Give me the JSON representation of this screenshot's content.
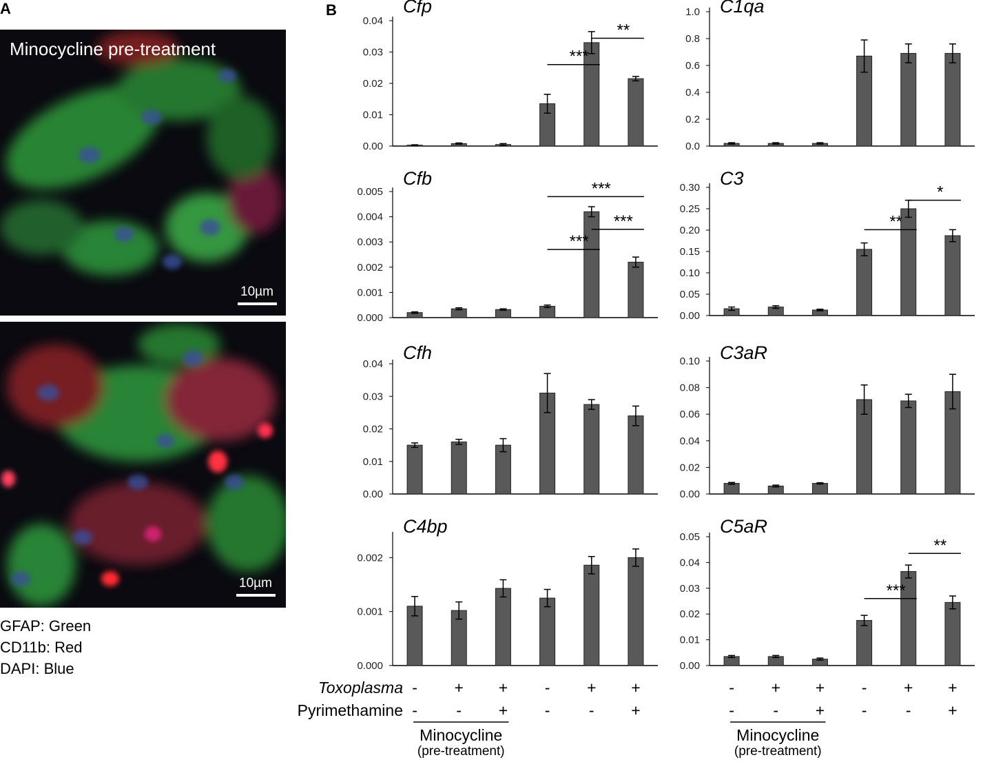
{
  "panel_a": {
    "label": "A",
    "images": [
      {
        "caption": "Minocycline pre-treatment",
        "scale_bar": "10µm"
      },
      {
        "scale_bar": "10µm"
      }
    ],
    "stain_legend": [
      "GFAP: Green",
      "CD11b: Red",
      "DAPI: Blue"
    ]
  },
  "panel_b": {
    "label": "B",
    "treatments": {
      "rows": [
        {
          "name": "Toxoplasma",
          "values": [
            "-",
            "+",
            "+",
            "-",
            "+",
            "+"
          ]
        },
        {
          "name": "Pyrimethamine",
          "values": [
            "-",
            "-",
            "+",
            "-",
            "-",
            "+"
          ]
        }
      ],
      "group": "Minocycline",
      "group_note": "(pre-treatment)"
    }
  },
  "chart_data": [
    {
      "type": "bar",
      "title": "Cfp",
      "categories": [
        null,
        null,
        null,
        null,
        null,
        null
      ],
      "color": "#595959",
      "values": [
        0.0003,
        0.0008,
        0.0005,
        0.0135,
        0.033,
        0.0215
      ],
      "errors": [
        0.0001,
        0.0002,
        0.0003,
        0.003,
        0.0035,
        0.0007
      ],
      "ylim": [
        0,
        0.04
      ],
      "yticks": [
        {
          "value": 0,
          "label": "0.00"
        },
        0.01,
        0.02,
        0.03,
        0.04
      ],
      "annotations": [
        "***",
        "**"
      ]
    },
    {
      "type": "bar",
      "title": "C1qa",
      "categories": [
        null,
        null,
        null,
        null,
        null,
        null
      ],
      "color": "#595959",
      "values": [
        0.02,
        0.02,
        0.02,
        0.67,
        0.69,
        0.69
      ],
      "errors": [
        0.005,
        0.005,
        0.005,
        0.12,
        0.07,
        0.07
      ],
      "ylim": [
        0,
        1
      ],
      "yticks": [
        {
          "value": 0,
          "label": "0.0"
        },
        0.2,
        0.4,
        0.6,
        0.8,
        {
          "value": 1,
          "label": "1.0"
        }
      ]
    },
    {
      "type": "bar",
      "title": "Cfb",
      "categories": [
        null,
        null,
        null,
        null,
        null,
        null
      ],
      "color": "#595959",
      "values": [
        0.0002,
        0.00035,
        0.00032,
        0.00045,
        0.0042,
        0.0022
      ],
      "errors": [
        3e-05,
        4e-05,
        3e-05,
        5e-05,
        0.0002,
        0.0002
      ],
      "ylim": [
        0,
        0.005
      ],
      "yticks": [
        {
          "value": 0,
          "label": "0.000"
        },
        0.001,
        0.002,
        0.003,
        0.004,
        0.005
      ],
      "annotations": [
        "***",
        "***",
        "***"
      ]
    },
    {
      "type": "bar",
      "title": "C3",
      "categories": [
        null,
        null,
        null,
        null,
        null,
        null
      ],
      "color": "#595959",
      "values": [
        0.016,
        0.02,
        0.013,
        0.155,
        0.25,
        0.187
      ],
      "errors": [
        0.004,
        0.003,
        0.002,
        0.015,
        0.02,
        0.014
      ],
      "ylim": [
        0,
        0.3
      ],
      "yticks": [
        {
          "value": 0,
          "label": "0.00"
        },
        0.05,
        {
          "value": 0.1,
          "label": "0.10"
        },
        0.15,
        {
          "value": 0.2,
          "label": "0.20"
        },
        0.25,
        {
          "value": 0.3,
          "label": "0.30"
        }
      ],
      "annotations": [
        "**",
        "*"
      ]
    },
    {
      "type": "bar",
      "title": "Cfh",
      "categories": [
        null,
        null,
        null,
        null,
        null,
        null
      ],
      "color": "#595959",
      "values": [
        0.015,
        0.016,
        0.015,
        0.031,
        0.0275,
        0.024
      ],
      "errors": [
        0.0007,
        0.0008,
        0.002,
        0.006,
        0.0015,
        0.003
      ],
      "ylim": [
        0,
        0.04
      ],
      "yticks": [
        {
          "value": 0,
          "label": "0.00"
        },
        0.01,
        0.02,
        0.03,
        0.04
      ]
    },
    {
      "type": "bar",
      "title": "C3aR",
      "categories": [
        null,
        null,
        null,
        null,
        null,
        null
      ],
      "color": "#595959",
      "values": [
        0.008,
        0.006,
        0.008,
        0.071,
        0.07,
        0.077
      ],
      "errors": [
        0.0007,
        0.0007,
        0.0005,
        0.011,
        0.005,
        0.013
      ],
      "ylim": [
        0,
        0.1
      ],
      "yticks": [
        {
          "value": 0,
          "label": "0.00"
        },
        0.02,
        0.04,
        0.06,
        0.08,
        {
          "value": 0.1,
          "label": "0.10"
        }
      ]
    },
    {
      "type": "bar",
      "title": "C4bp",
      "categories": [
        null,
        null,
        null,
        null,
        null,
        null
      ],
      "color": "#595959",
      "values": [
        0.0011,
        0.00102,
        0.00143,
        0.00125,
        0.00186,
        0.002
      ],
      "errors": [
        0.00018,
        0.00016,
        0.00016,
        0.00016,
        0.00016,
        0.00016
      ],
      "ylim": [
        0,
        0.0024
      ],
      "yticks": [
        {
          "value": 0,
          "label": "0.000"
        },
        0.001,
        0.002
      ]
    },
    {
      "type": "bar",
      "title": "C5aR",
      "categories": [
        null,
        null,
        null,
        null,
        null,
        null
      ],
      "color": "#595959",
      "values": [
        0.0035,
        0.0035,
        0.0025,
        0.0175,
        0.0365,
        0.0245
      ],
      "errors": [
        0.0004,
        0.0004,
        0.0004,
        0.002,
        0.0025,
        0.0025
      ],
      "ylim": [
        0,
        0.05
      ],
      "yticks": [
        {
          "value": 0,
          "label": "0.00"
        },
        0.01,
        0.02,
        0.03,
        0.04,
        0.05
      ],
      "annotations": [
        "***",
        "**"
      ]
    }
  ]
}
